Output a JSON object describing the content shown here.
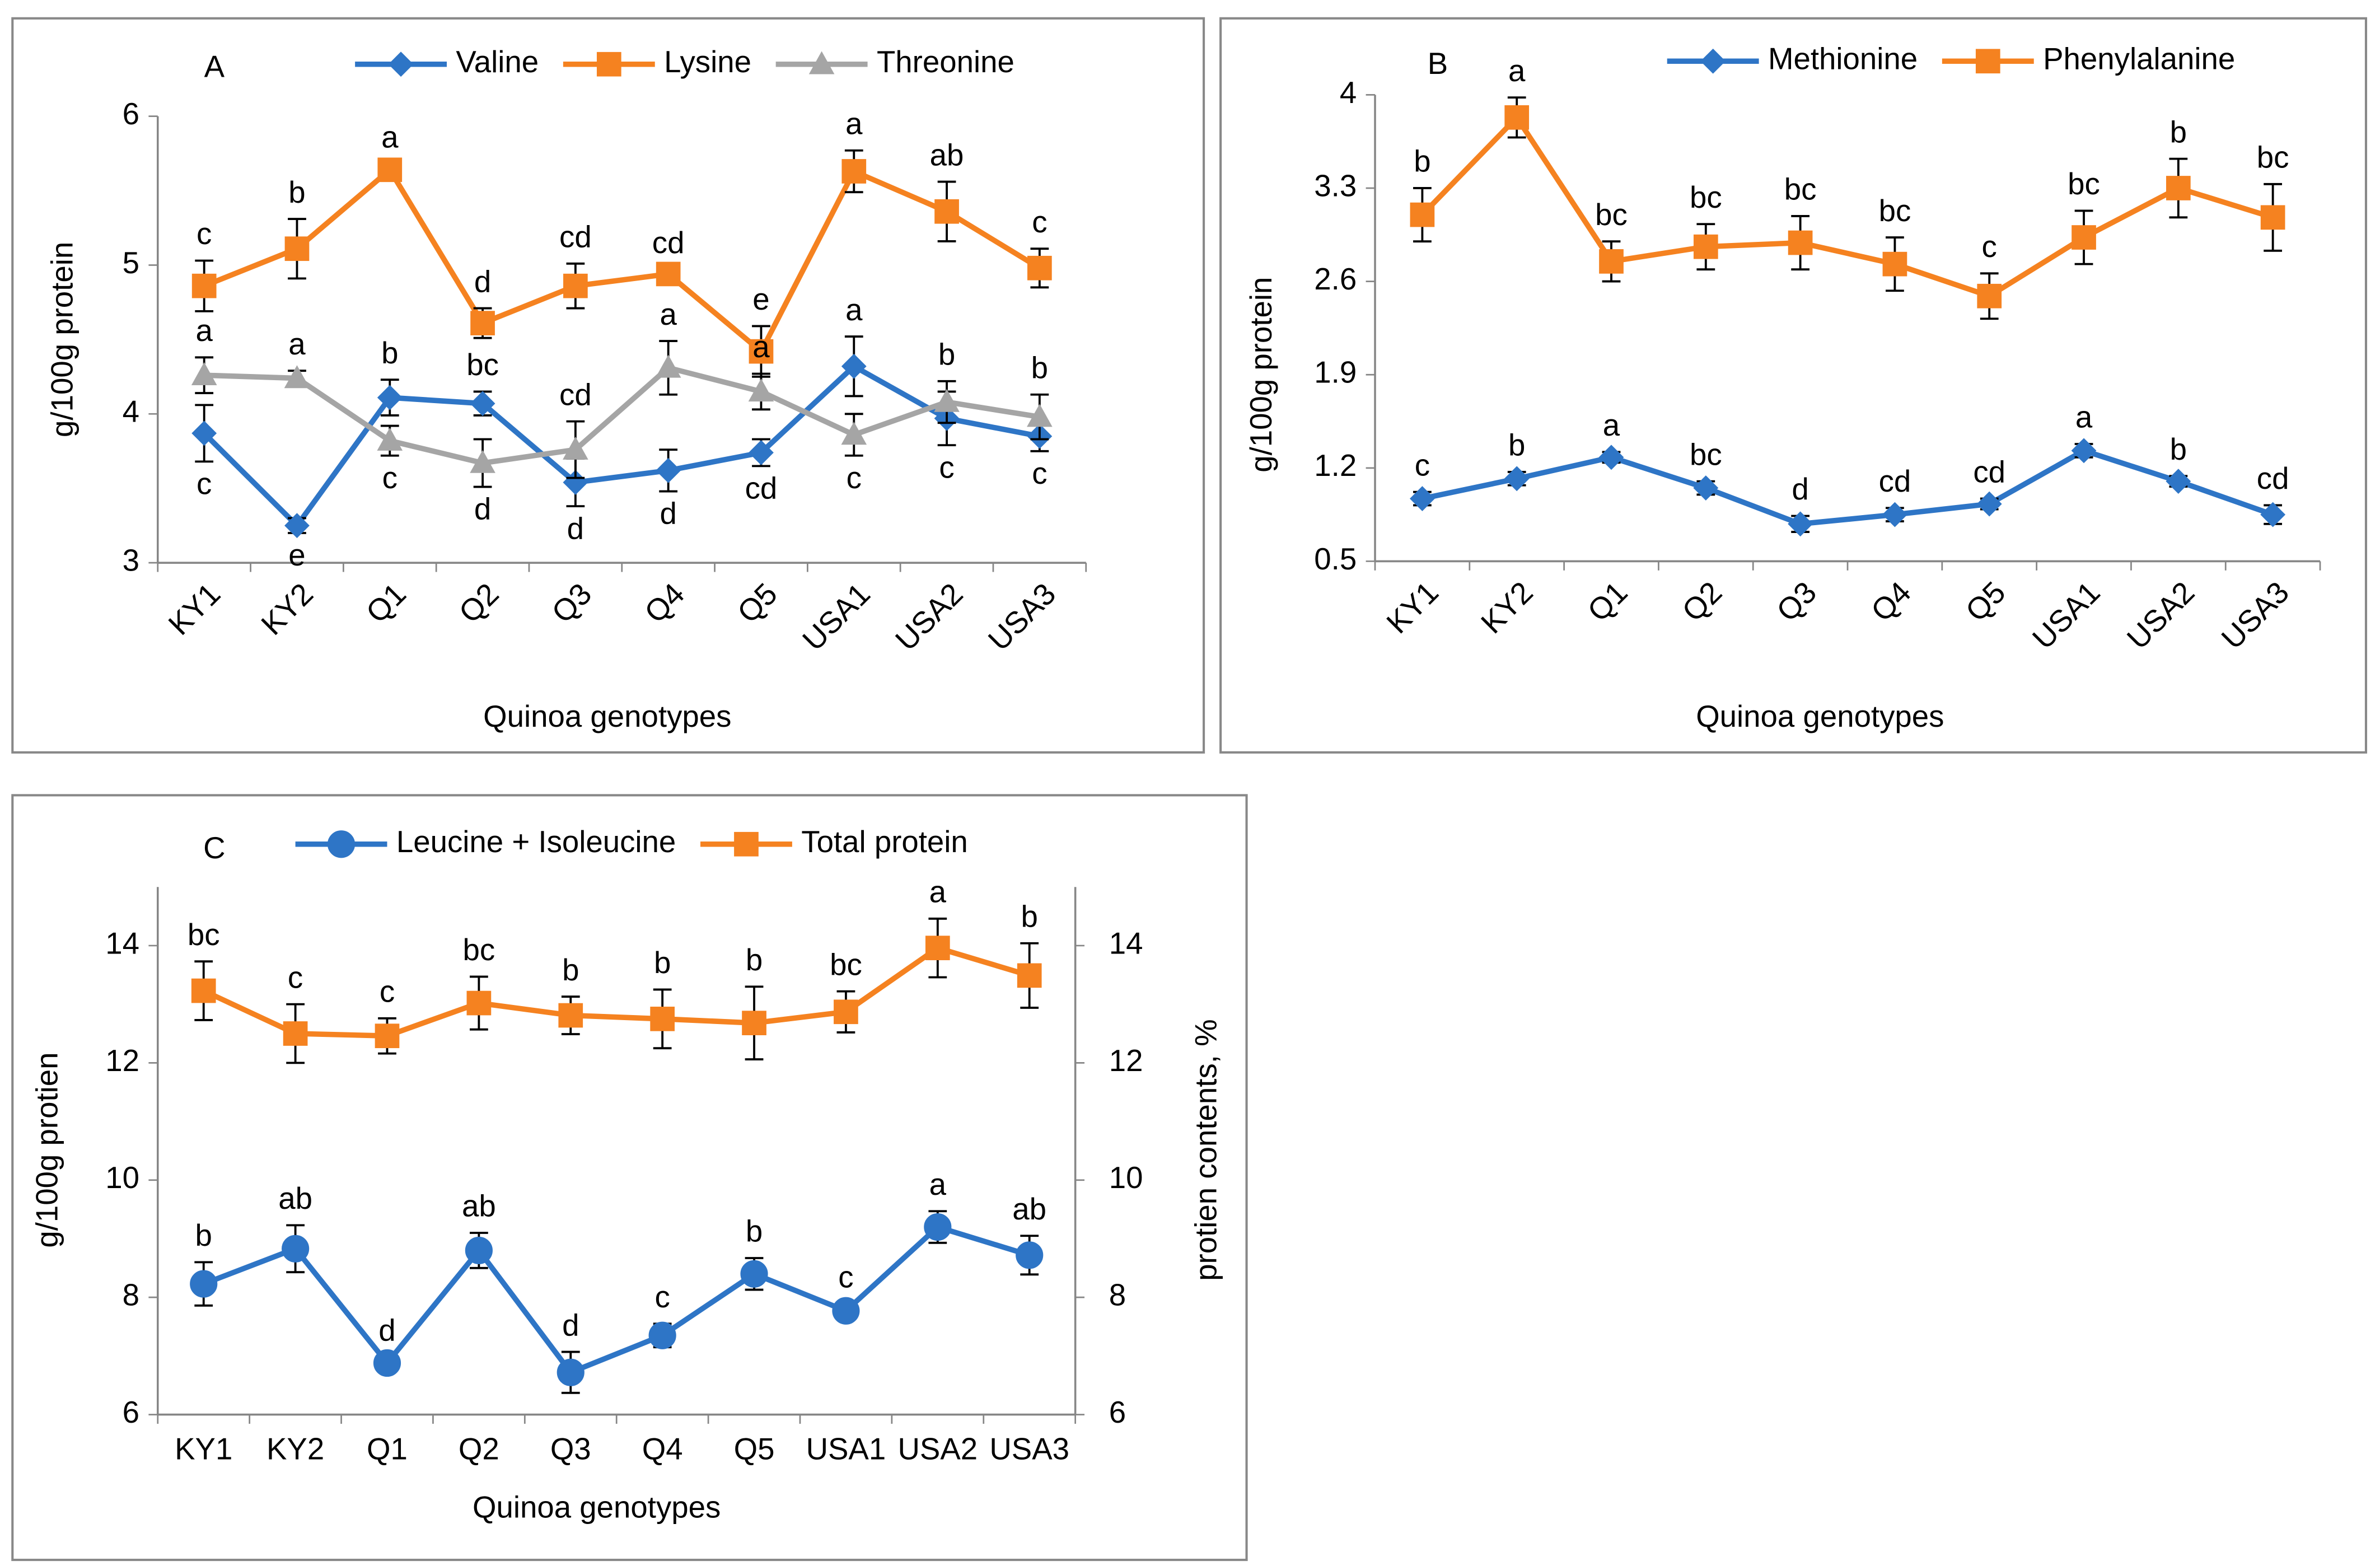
{
  "chart_data": [
    {
      "type": "line",
      "panel": "A",
      "xlabel": "Quinoa genotypes",
      "ylabel": "g/100g protein",
      "rotate_xticks": true,
      "categories": [
        "KY1",
        "KY2",
        "Q1",
        "Q2",
        "Q3",
        "Q4",
        "Q5",
        "USA1",
        "USA2",
        "USA3"
      ],
      "ylim": [
        3,
        6
      ],
      "yticks": [
        3,
        4,
        5,
        6
      ],
      "series": [
        {
          "name": "Valine",
          "color": "#2e75c6",
          "marker": "diamond",
          "values": [
            3.87,
            3.25,
            4.11,
            4.07,
            3.54,
            3.62,
            3.74,
            4.32,
            3.97,
            3.85
          ],
          "errors": [
            0.19,
            0.05,
            0.12,
            0.08,
            0.16,
            0.14,
            0.09,
            0.2,
            0.18,
            0.1
          ],
          "letters": [
            "c",
            "e",
            "b",
            "bc",
            "d",
            "d",
            "cd",
            "a",
            "c",
            "c"
          ],
          "letters_at": [
            "below",
            "below",
            "above",
            "above",
            "below",
            "below",
            "below",
            "above",
            "below",
            "below"
          ]
        },
        {
          "name": "Lysine",
          "color": "#f58220",
          "marker": "square",
          "values": [
            4.86,
            5.11,
            5.64,
            4.61,
            4.86,
            4.94,
            4.42,
            5.63,
            5.36,
            4.98
          ],
          "errors": [
            0.17,
            0.2,
            0.04,
            0.1,
            0.15,
            0.03,
            0.17,
            0.14,
            0.2,
            0.13
          ],
          "letters": [
            "c",
            "b",
            "a",
            "d",
            "cd",
            "cd",
            "e",
            "a",
            "ab",
            "c"
          ],
          "letters_at": "above"
        },
        {
          "name": "Threonine",
          "color": "#a5a5a5",
          "marker": "triangle",
          "values": [
            4.26,
            4.24,
            3.82,
            3.67,
            3.76,
            4.31,
            4.15,
            3.86,
            4.08,
            3.98
          ],
          "errors": [
            0.12,
            0.05,
            0.1,
            0.16,
            0.19,
            0.18,
            0.12,
            0.14,
            0.14,
            0.15
          ],
          "letters": [
            "a",
            "a",
            "c",
            "d",
            "cd",
            "a",
            "a",
            "c",
            "b",
            "b"
          ],
          "letters_at": [
            "above",
            "above",
            "below",
            "below",
            "above",
            "above",
            "above",
            "below",
            "above",
            "above"
          ]
        }
      ]
    },
    {
      "type": "line",
      "panel": "B",
      "xlabel": "Quinoa genotypes",
      "ylabel": "g/100g protein",
      "rotate_xticks": true,
      "categories": [
        "KY1",
        "KY2",
        "Q1",
        "Q2",
        "Q3",
        "Q4",
        "Q5",
        "USA1",
        "USA2",
        "USA3"
      ],
      "ylim": [
        0.5,
        4
      ],
      "yticks": [
        0.5,
        1.2,
        1.9,
        2.6,
        3.3,
        4
      ],
      "series": [
        {
          "name": "Methionine",
          "color": "#2e75c6",
          "marker": "diamond",
          "values": [
            0.97,
            1.12,
            1.28,
            1.05,
            0.78,
            0.85,
            0.93,
            1.33,
            1.1,
            0.85
          ],
          "errors": [
            0.05,
            0.05,
            0.04,
            0.05,
            0.06,
            0.05,
            0.04,
            0.05,
            0.04,
            0.07
          ],
          "letters": [
            "c",
            "b",
            "a",
            "bc",
            "d",
            "cd",
            "cd",
            "a",
            "b",
            "cd"
          ],
          "letters_at": "above"
        },
        {
          "name": "Phenylalanine",
          "color": "#f58220",
          "marker": "square",
          "values": [
            3.1,
            3.83,
            2.75,
            2.86,
            2.89,
            2.73,
            2.49,
            2.93,
            3.3,
            3.08
          ],
          "errors": [
            0.2,
            0.15,
            0.15,
            0.17,
            0.2,
            0.2,
            0.17,
            0.2,
            0.22,
            0.25
          ],
          "letters": [
            "b",
            "a",
            "bc",
            "bc",
            "bc",
            "bc",
            "c",
            "bc",
            "b",
            "bc"
          ],
          "letters_at": "above"
        }
      ]
    },
    {
      "type": "line",
      "panel": "C",
      "xlabel": "Quinoa genotypes",
      "ylabel": "g/100g protien",
      "y2label": "protien contents, %",
      "rotate_xticks": false,
      "categories": [
        "KY1",
        "KY2",
        "Q1",
        "Q2",
        "Q3",
        "Q4",
        "Q5",
        "USA1",
        "USA2",
        "USA3"
      ],
      "ylim": [
        6,
        15
      ],
      "yticks": [
        6,
        8,
        10,
        12,
        14
      ],
      "y2lim": [
        6,
        15
      ],
      "y2ticks": [
        6,
        8,
        10,
        12,
        14
      ],
      "series": [
        {
          "name": "Leucine + Isoleucine",
          "color": "#2e75c6",
          "marker": "circle",
          "letter_color": "#000000",
          "values": [
            8.23,
            8.83,
            6.88,
            8.8,
            6.72,
            7.35,
            8.4,
            7.77,
            9.2,
            8.72
          ],
          "errors": [
            0.37,
            0.4,
            0.1,
            0.3,
            0.35,
            0.2,
            0.27,
            0.12,
            0.27,
            0.33
          ],
          "letters": [
            "b",
            "ab",
            "d",
            "ab",
            "d",
            "c",
            "b",
            "c",
            "a",
            "ab"
          ],
          "letters_at": "above"
        },
        {
          "name": "Total protein",
          "color": "#f58220",
          "marker": "square",
          "letter_color": "#000000",
          "axis": "y2",
          "values": [
            13.23,
            12.5,
            12.46,
            13.02,
            12.81,
            12.75,
            12.68,
            12.87,
            13.96,
            13.49
          ],
          "errors": [
            0.5,
            0.5,
            0.3,
            0.45,
            0.32,
            0.5,
            0.62,
            0.35,
            0.5,
            0.55
          ],
          "letters": [
            "bc",
            "c",
            "c",
            "bc",
            "b",
            "b",
            "b",
            "bc",
            "a",
            "b"
          ],
          "letters_at": "above"
        }
      ]
    }
  ]
}
